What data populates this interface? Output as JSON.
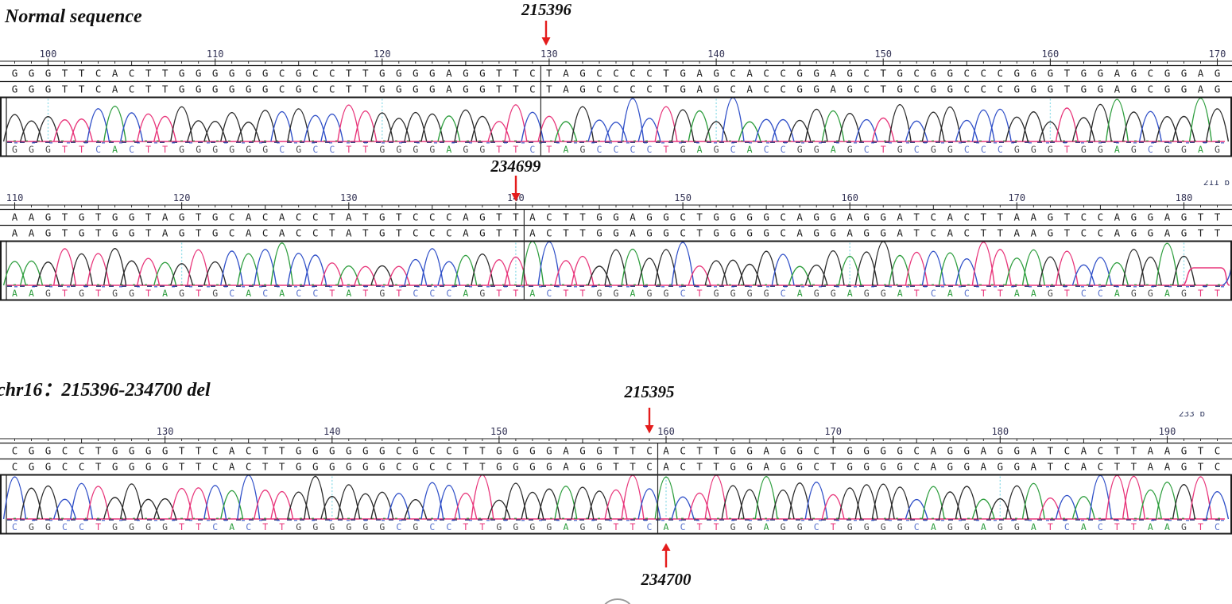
{
  "figure": {
    "description_labels": {
      "normal_title": "Normal sequence",
      "deletion_title": "chr16：215396-234700 del"
    },
    "base_colors": {
      "A": "#2e9e3e",
      "C": "#3050c8",
      "G": "#2b2b2b",
      "T": "#e8357a"
    },
    "letter_colors": {
      "A": "#2e9e3e",
      "C": "#5b74cc",
      "G": "#4a4a4a",
      "T": "#e8357a"
    },
    "arrow_color": "#e41c1c",
    "ruler_number_color": "#333355",
    "dotted_line_color": "#8edce8",
    "panels": [
      {
        "id": "normal-trace-1",
        "title": "Normal sequence",
        "breakpoint_top": {
          "label": "215396"
        },
        "ruler": {
          "start": 98,
          "tick_values": [
            100,
            110,
            120,
            130,
            140,
            150,
            160,
            170
          ],
          "dotted_values": [
            100,
            120,
            140,
            160
          ]
        },
        "sequence_before_junction": "GGGTTCACTTGGGGGGCGCCTTGGGGAGGTTC",
        "sequence_after_junction": "TAGCCCCTGAGCACCGGAGCTGCGGCCCGGGTGGAGCGGAG",
        "corner_label": ""
      },
      {
        "id": "normal-trace-2",
        "title": "",
        "breakpoint_top": {
          "label": "234699"
        },
        "ruler": {
          "start": 110,
          "tick_values": [
            110,
            120,
            130,
            140,
            150,
            160,
            170,
            180
          ],
          "dotted_values": [
            120,
            140,
            160,
            180
          ]
        },
        "sequence_before_junction": "AAGTGTGGTAGTGCACACCTATGTCCCAGTT",
        "sequence_after_junction": "ACTTGGAGGCTGGGGCAGGAGGATCACTTAAGTCCAGGAGTT",
        "corner_label": "211 b",
        "tail": "red-plateau"
      },
      {
        "id": "deletion-trace",
        "title": "chr16：215396-234700 del",
        "breakpoint_top": {
          "label": "215395"
        },
        "breakpoint_bottom": {
          "label": "234700"
        },
        "ruler": {
          "start": 121,
          "tick_values": [
            130,
            140,
            150,
            160,
            170,
            180,
            190
          ],
          "dotted_values": [
            140,
            160,
            180
          ]
        },
        "sequence_before_junction": "CGGCCTGGGGTTCACTTGGGGGGCGCCTTGGGGAGGTTC",
        "sequence_after_junction": "ACTTGGAGGCTGGGGCAGGAGGATCACTTAAGTC",
        "corner_label": "233 b"
      }
    ]
  }
}
